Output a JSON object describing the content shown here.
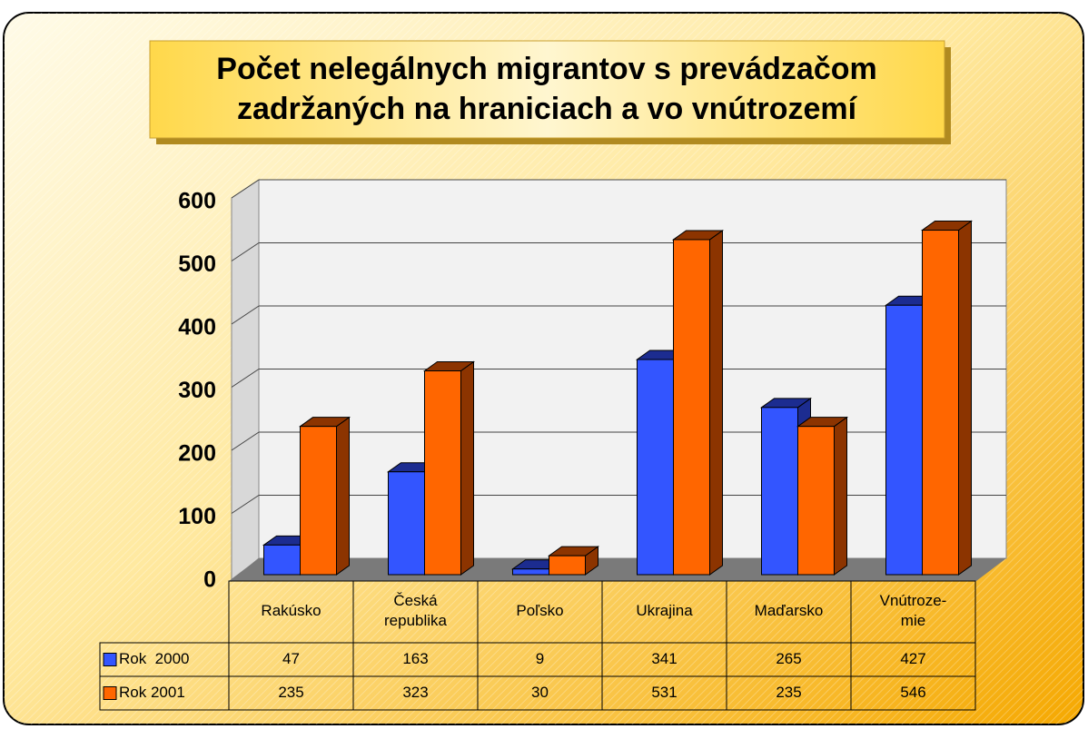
{
  "chart_data": {
    "type": "bar3d",
    "title": [
      "Počet nelegálnych migrantov s prevádzačom",
      "zadržaných na hraniciach a vo vnútrozemí"
    ],
    "categories": [
      "Rakúsko",
      "Česká\nrepublika",
      "Poľsko",
      "Ukrajina",
      "Maďarsko",
      "Vnútroze-\nmie"
    ],
    "series": [
      {
        "name": "Rok  2000",
        "color": "#3355ff",
        "side": "#1c2c90",
        "values": [
          47,
          163,
          9,
          341,
          265,
          427
        ]
      },
      {
        "name": "Rok 2001",
        "color": "#ff6600",
        "side": "#8c3400",
        "values": [
          235,
          323,
          30,
          531,
          235,
          546
        ]
      }
    ],
    "ylim": [
      0,
      600
    ],
    "yticks": [
      0,
      100,
      200,
      300,
      400,
      500,
      600
    ],
    "grid": true,
    "legend": "table"
  }
}
